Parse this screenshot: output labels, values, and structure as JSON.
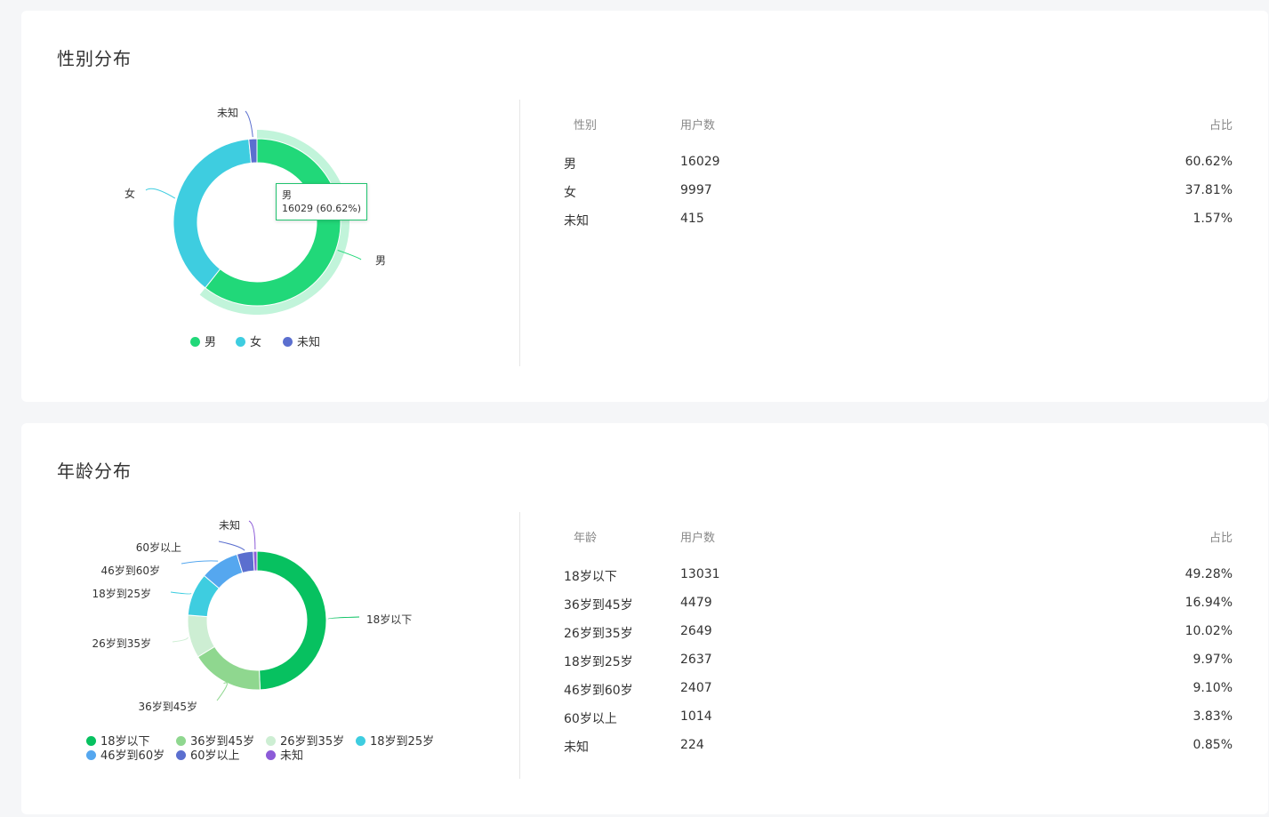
{
  "gender": {
    "title": "性别分布",
    "table_headers": {
      "category": "性别",
      "users": "用户数",
      "ratio": "占比"
    },
    "rows": [
      {
        "name": "男",
        "users": "16029",
        "ratio": "60.62%"
      },
      {
        "name": "女",
        "users": "9997",
        "ratio": "37.81%"
      },
      {
        "name": "未知",
        "users": "415",
        "ratio": "1.57%"
      }
    ],
    "tooltip": {
      "name": "男",
      "value": "16029 (60.62%)"
    }
  },
  "age": {
    "title": "年龄分布",
    "table_headers": {
      "category": "年龄",
      "users": "用户数",
      "ratio": "占比"
    },
    "rows": [
      {
        "name": "18岁以下",
        "users": "13031",
        "ratio": "49.28%"
      },
      {
        "name": "36岁到45岁",
        "users": "4479",
        "ratio": "16.94%"
      },
      {
        "name": "26岁到35岁",
        "users": "2649",
        "ratio": "10.02%"
      },
      {
        "name": "18岁到25岁",
        "users": "2637",
        "ratio": "9.97%"
      },
      {
        "name": "46岁到60岁",
        "users": "2407",
        "ratio": "9.10%"
      },
      {
        "name": "60岁以上",
        "users": "1014",
        "ratio": "3.83%"
      },
      {
        "name": "未知",
        "users": "224",
        "ratio": "0.85%"
      }
    ]
  },
  "chart_data": [
    {
      "type": "pie",
      "subtype": "donut",
      "title": "性别分布",
      "categories": [
        "男",
        "女",
        "未知"
      ],
      "values": [
        16029,
        9997,
        415
      ],
      "colors": [
        "#21d879",
        "#3ecde0",
        "#5b6fcf"
      ],
      "highlighted": "男",
      "legend_position": "bottom"
    },
    {
      "type": "pie",
      "subtype": "donut",
      "title": "年龄分布",
      "categories": [
        "18岁以下",
        "36岁到45岁",
        "26岁到35岁",
        "18岁到25岁",
        "46岁到60岁",
        "60岁以上",
        "未知"
      ],
      "values": [
        13031,
        4479,
        2649,
        2637,
        2407,
        1014,
        224
      ],
      "colors": [
        "#07c160",
        "#8fd78f",
        "#cdeed3",
        "#3ecde0",
        "#55a7ef",
        "#5b6fcf",
        "#8c5bd8"
      ],
      "legend_position": "bottom"
    }
  ]
}
